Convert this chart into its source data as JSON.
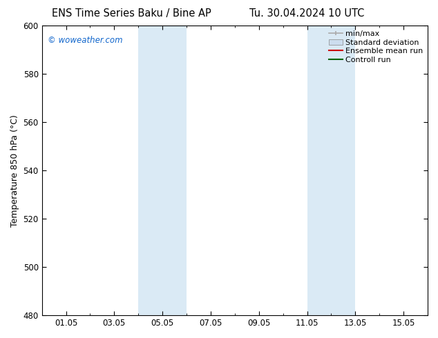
{
  "title_left": "ENS Time Series Baku / Bine AP",
  "title_right": "Tu. 30.04.2024 10 UTC",
  "ylabel": "Temperature 850 hPa (°C)",
  "ylim": [
    480,
    600
  ],
  "yticks": [
    480,
    500,
    520,
    540,
    560,
    580,
    600
  ],
  "xtick_labels": [
    "01.05",
    "03.05",
    "05.05",
    "07.05",
    "09.05",
    "11.05",
    "13.05",
    "15.05"
  ],
  "xtick_positions": [
    1,
    3,
    5,
    7,
    9,
    11,
    13,
    15
  ],
  "xlim": [
    0,
    16
  ],
  "shade_bands": [
    {
      "x_start": 4.0,
      "x_end": 6.0,
      "color": "#daeaf5"
    },
    {
      "x_start": 11.0,
      "x_end": 13.0,
      "color": "#daeaf5"
    }
  ],
  "watermark_text": "© woweather.com",
  "watermark_color": "#1166cc",
  "bg_color": "#ffffff",
  "plot_bg_color": "#ffffff",
  "border_color": "#000000",
  "legend_entries": [
    {
      "label": "min/max",
      "color": "#aaaaaa",
      "lw": 1.2,
      "type": "line_endcap"
    },
    {
      "label": "Standard deviation",
      "color": "#ccddee",
      "lw": 4,
      "type": "patch"
    },
    {
      "label": "Ensemble mean run",
      "color": "#cc0000",
      "lw": 1.5,
      "type": "line"
    },
    {
      "label": "Controll run",
      "color": "#006600",
      "lw": 1.5,
      "type": "line"
    }
  ],
  "title_fontsize": 10.5,
  "tick_fontsize": 8.5,
  "legend_fontsize": 8,
  "ylabel_fontsize": 9,
  "watermark_fontsize": 8.5
}
